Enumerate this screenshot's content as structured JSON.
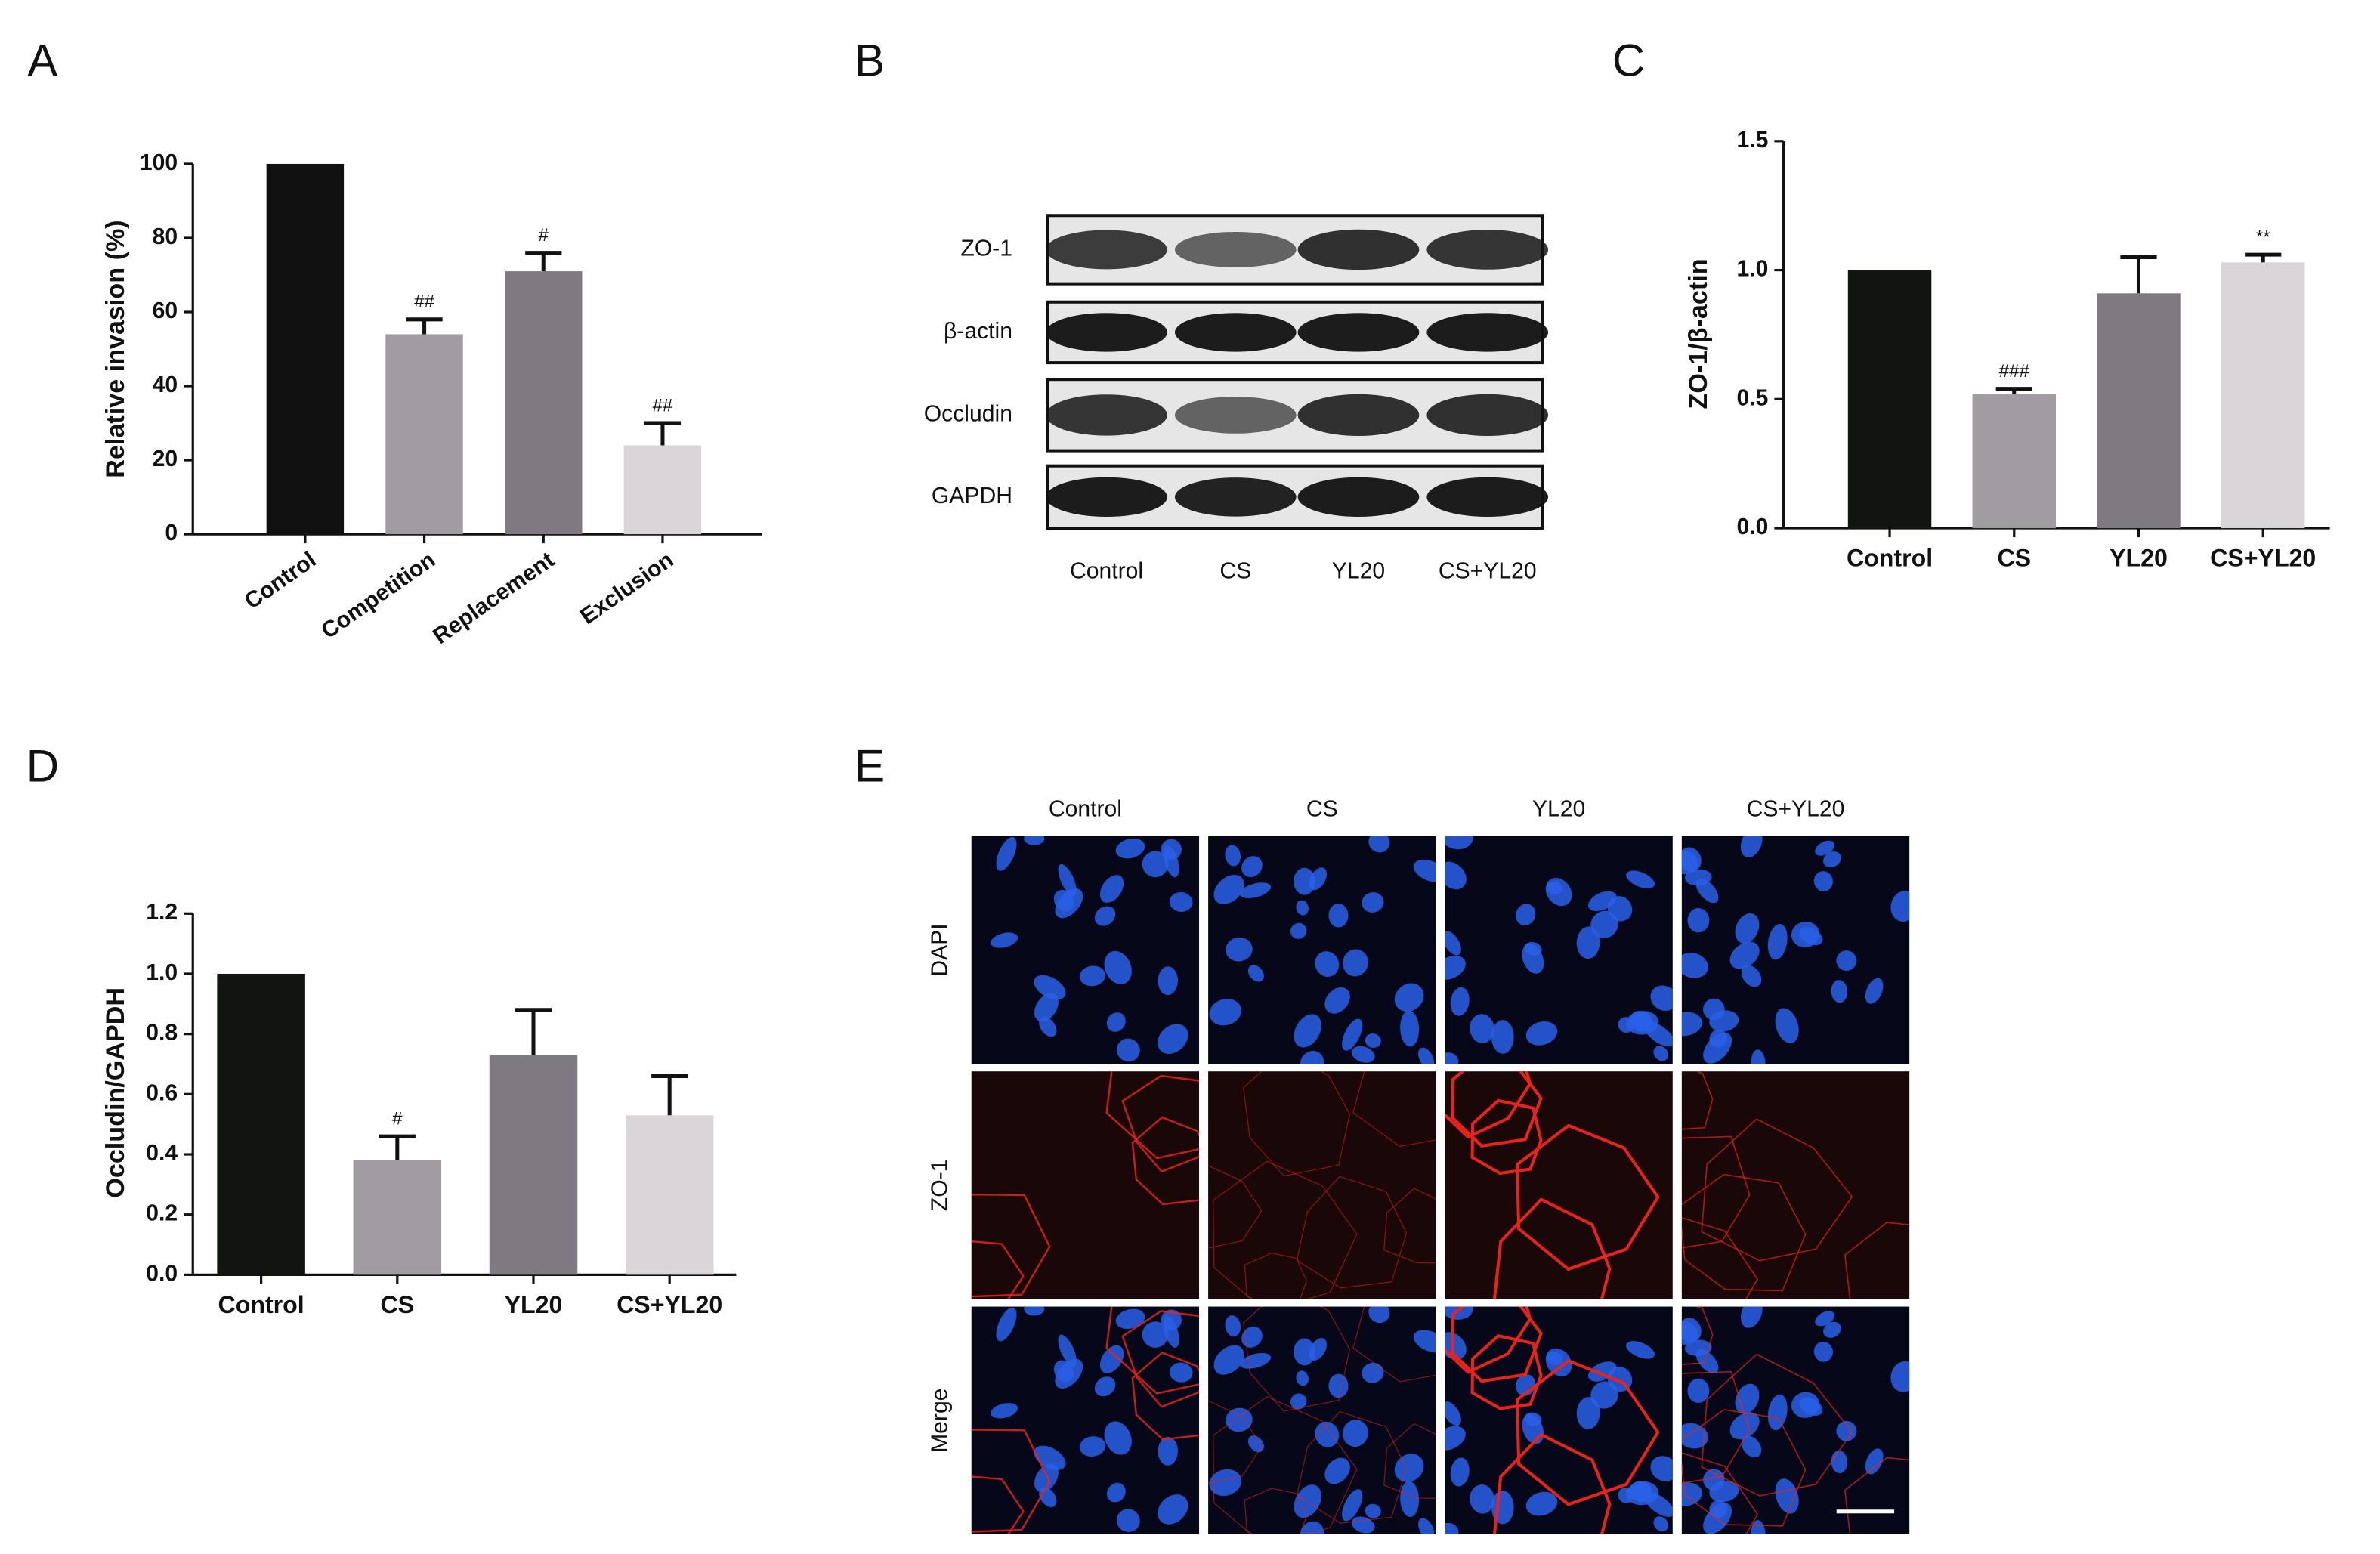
{
  "chart_data": [
    {
      "type": "bar",
      "panel_label": "A",
      "ylabel": "Relative invasion (%)",
      "categories": [
        "Control",
        "Competition",
        "Replacement",
        "Exclusion"
      ],
      "values": [
        100,
        54,
        71,
        24
      ],
      "errors": [
        0,
        4,
        5,
        6
      ],
      "annotations": [
        null,
        "##",
        "#",
        "##"
      ],
      "colors": [
        "#111111",
        "#a19ba2",
        "#7f7a81",
        "#d9d5d9"
      ],
      "ylim": [
        0,
        100
      ],
      "yticks": [
        0,
        20,
        40,
        60,
        80,
        100
      ],
      "xlabel_rotation": -35
    },
    {
      "type": "bar",
      "panel_label": "C",
      "ylabel": "ZO-1/β-actin",
      "categories": [
        "Control",
        "CS",
        "YL20",
        "CS+YL20"
      ],
      "values": [
        1.0,
        0.52,
        0.91,
        1.03
      ],
      "errors": [
        0,
        0.02,
        0.14,
        0.03
      ],
      "annotations": [
        null,
        "###",
        null,
        "**"
      ],
      "colors": [
        "#111411",
        "#a19ba2",
        "#7f7a81",
        "#d9d5d9"
      ],
      "ylim": [
        0,
        1.5
      ],
      "yticks": [
        {
          "value": 0,
          "label": "0.0"
        },
        {
          "value": 0.5,
          "label": "0.5"
        },
        {
          "value": 1,
          "label": "1.0"
        },
        {
          "value": 1.5,
          "label": "1.5"
        }
      ]
    },
    {
      "type": "bar",
      "panel_label": "D",
      "ylabel": "Occludin/GAPDH",
      "categories": [
        "Control",
        "CS",
        "YL20",
        "CS+YL20"
      ],
      "values": [
        1.0,
        0.38,
        0.73,
        0.53
      ],
      "errors": [
        0,
        0.08,
        0.15,
        0.13
      ],
      "annotations": [
        null,
        "#",
        null,
        null
      ],
      "colors": [
        "#111411",
        "#a19ba2",
        "#7f7a81",
        "#d9d5d9"
      ],
      "ylim": [
        0,
        1.2
      ],
      "yticks": [
        {
          "value": 0,
          "label": "0.0"
        },
        {
          "value": 0.2,
          "label": "0.2"
        },
        {
          "value": 0.4,
          "label": "0.4"
        },
        {
          "value": 0.6,
          "label": "0.6"
        },
        {
          "value": 0.8,
          "label": "0.8"
        },
        {
          "value": 1,
          "label": "1.0"
        },
        {
          "value": 1.2,
          "label": "1.2"
        }
      ]
    }
  ],
  "blot": {
    "panel_label": "B",
    "rows": [
      "ZO-1",
      "β-actin",
      "Occludin",
      "GAPDH"
    ],
    "lanes": [
      "Control",
      "CS",
      "YL20",
      "CS+YL20"
    ]
  },
  "immunofluorescence": {
    "panel_label": "E",
    "columns": [
      "Control",
      "CS",
      "YL20",
      "CS+YL20"
    ],
    "rows": [
      "DAPI",
      "ZO-1",
      "Merge"
    ]
  }
}
